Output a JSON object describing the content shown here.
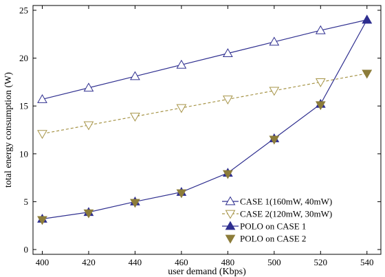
{
  "chart_data": {
    "type": "line",
    "title": "",
    "xlabel": "user demand (Kbps)",
    "ylabel": "total energy consumption (W)",
    "x": [
      400,
      420,
      440,
      460,
      480,
      500,
      520,
      540
    ],
    "xlim": [
      396,
      546
    ],
    "ylim": [
      -0.5,
      25.5
    ],
    "xticks": [
      400,
      420,
      440,
      460,
      480,
      500,
      520,
      540
    ],
    "yticks": [
      0,
      5,
      10,
      15,
      20,
      25
    ],
    "grid": false,
    "legend_position": "bottom-right",
    "series": [
      {
        "name": "CASE 1(160mW, 40mW)",
        "values": [
          15.7,
          16.9,
          18.1,
          19.3,
          20.5,
          21.7,
          22.9,
          24.0
        ],
        "color": "#2e2e8f",
        "line": "solid",
        "marker": "triangle-up",
        "filled": false
      },
      {
        "name": "CASE 2(120mW, 30mW)",
        "values": [
          12.1,
          13.0,
          13.9,
          14.8,
          15.7,
          16.6,
          17.5,
          18.4
        ],
        "color": "#a69447",
        "line": "dashed",
        "marker": "triangle-down",
        "filled": false
      },
      {
        "name": "POLO on CASE 1",
        "values": [
          3.2,
          3.9,
          5.0,
          6.0,
          8.0,
          11.6,
          15.2,
          24.0
        ],
        "color": "#2e2e8f",
        "line": "solid",
        "marker": "triangle-up",
        "filled": true
      },
      {
        "name": "POLO on CASE 2",
        "values": [
          3.1,
          3.8,
          4.9,
          5.9,
          7.9,
          11.5,
          15.1,
          18.4
        ],
        "color": "#8c7c3a",
        "line": "none",
        "marker": "triangle-down",
        "filled": true
      }
    ]
  }
}
